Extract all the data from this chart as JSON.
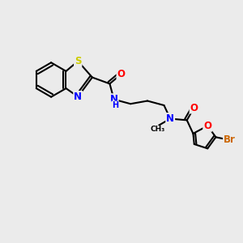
{
  "background_color": "#ebebeb",
  "bond_color": "#000000",
  "atom_colors": {
    "S": "#cccc00",
    "N": "#0000ff",
    "O": "#ff0000",
    "Br": "#cc6600",
    "C": "#000000"
  },
  "figsize": [
    3.0,
    3.0
  ],
  "dpi": 100,
  "lw": 1.5,
  "fs": 8.5
}
